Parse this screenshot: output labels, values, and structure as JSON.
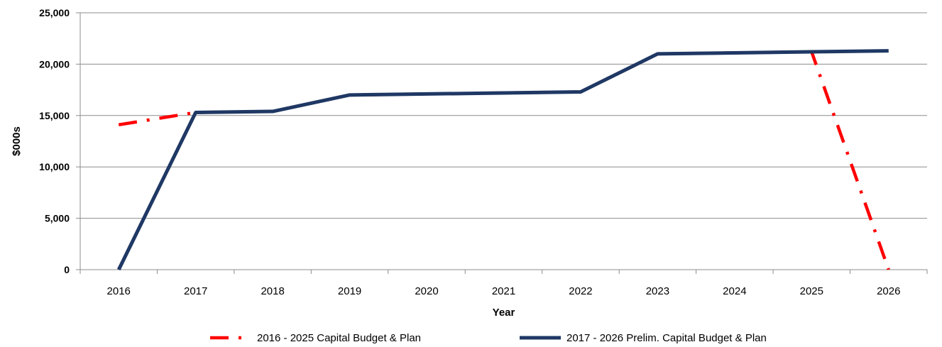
{
  "chart_data": {
    "type": "line",
    "title": "",
    "xlabel": "Year",
    "ylabel": "$000s",
    "ylim": [
      0,
      25000
    ],
    "yticks": [
      0,
      5000,
      10000,
      15000,
      20000,
      25000
    ],
    "ytick_labels": [
      "0",
      "5,000",
      "10,000",
      "15,000",
      "20,000",
      "25,000"
    ],
    "categories": [
      "2016",
      "2017",
      "2018",
      "2019",
      "2020",
      "2021",
      "2022",
      "2023",
      "2024",
      "2025",
      "2026"
    ],
    "grid": "horizontal",
    "legend_position": "bottom",
    "series": [
      {
        "name": "2016 - 2025 Capital Budget & Plan",
        "color": "#ff0000",
        "style": "dash-dot",
        "values": [
          14100,
          15300,
          15400,
          17000,
          17100,
          17200,
          17300,
          21000,
          21100,
          21200,
          0
        ]
      },
      {
        "name": "2017 - 2026 Prelim. Capital Budget & Plan",
        "color": "#1f3864",
        "style": "solid",
        "values": [
          0,
          15300,
          15400,
          17000,
          17100,
          17200,
          17300,
          21000,
          21100,
          21200,
          21300
        ]
      }
    ]
  }
}
